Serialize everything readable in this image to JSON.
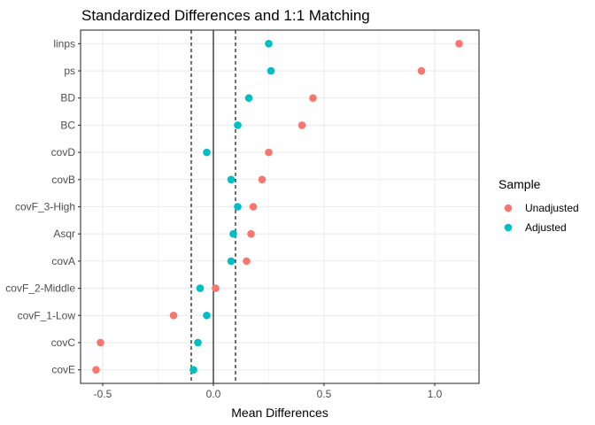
{
  "chart_data": {
    "type": "scatter",
    "title": "Standardized Differences and 1:1 Matching",
    "xlabel": "Mean Differences",
    "ylabel": "",
    "xlim": [
      -0.6,
      1.2
    ],
    "x_ticks": [
      -0.5,
      0.0,
      0.5,
      1.0
    ],
    "x_tick_labels": [
      "-0.5",
      "0.0",
      "0.5",
      "1.0"
    ],
    "categories": [
      "linps",
      "ps",
      "BD",
      "BC",
      "covD",
      "covB",
      "covF_3-High",
      "Asqr",
      "covA",
      "covF_2-Middle",
      "covF_1-Low",
      "covC",
      "covE"
    ],
    "reference_lines": {
      "solid": [
        0.0
      ],
      "dashed": [
        -0.1,
        0.1
      ]
    },
    "grid": true,
    "legend_position": "right",
    "legend_title": "Sample",
    "series": [
      {
        "name": "Unadjusted",
        "color": "#F8766D",
        "values": [
          1.11,
          0.94,
          0.45,
          0.4,
          0.25,
          0.22,
          0.18,
          0.17,
          0.15,
          0.01,
          -0.18,
          -0.51,
          -0.53
        ]
      },
      {
        "name": "Adjusted",
        "color": "#00BFC4",
        "values": [
          0.25,
          0.26,
          0.16,
          0.11,
          -0.03,
          0.08,
          0.11,
          0.09,
          0.08,
          -0.06,
          -0.03,
          -0.07,
          -0.09
        ]
      }
    ]
  }
}
